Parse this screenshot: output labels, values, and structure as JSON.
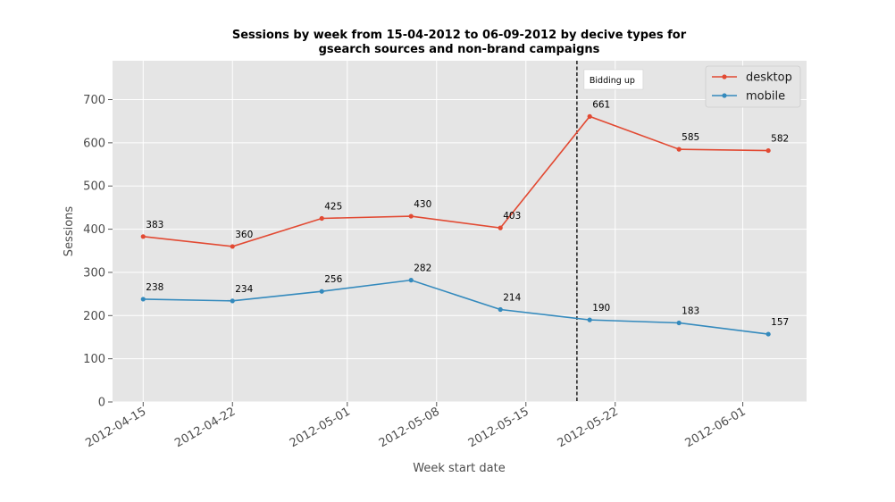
{
  "chart_data": {
    "type": "line",
    "title_lines": [
      "Sessions by week from 15-04-2012 to 06-09-2012 by decive types for",
      "gsearch sources and non-brand campaigns"
    ],
    "xlabel": "Week start date",
    "ylabel": "Sessions",
    "x": [
      "2012-04-15",
      "2012-04-22",
      "2012-04-29",
      "2012-05-06",
      "2012-05-13",
      "2012-05-20",
      "2012-05-27",
      "2012-06-03"
    ],
    "series": [
      {
        "name": "desktop",
        "color": "#e24a33",
        "values": [
          383,
          360,
          425,
          430,
          403,
          661,
          585,
          582
        ]
      },
      {
        "name": "mobile",
        "color": "#348abd",
        "values": [
          238,
          234,
          256,
          282,
          214,
          190,
          183,
          157
        ]
      }
    ],
    "ylim": [
      0,
      790
    ],
    "yticks": [
      0,
      100,
      200,
      300,
      400,
      500,
      600,
      700
    ],
    "xticks": [
      "2012-04-15",
      "2012-04-22",
      "2012-05-01",
      "2012-05-08",
      "2012-05-15",
      "2012-05-22",
      "2012-06-01"
    ],
    "xlim": [
      "2012-04-12.6",
      "2012-06-06"
    ],
    "annotation": {
      "x": "2012-05-19",
      "text": "Bidding up"
    },
    "grid": true,
    "legend_position": "top-right",
    "background": "#e5e5e5"
  }
}
